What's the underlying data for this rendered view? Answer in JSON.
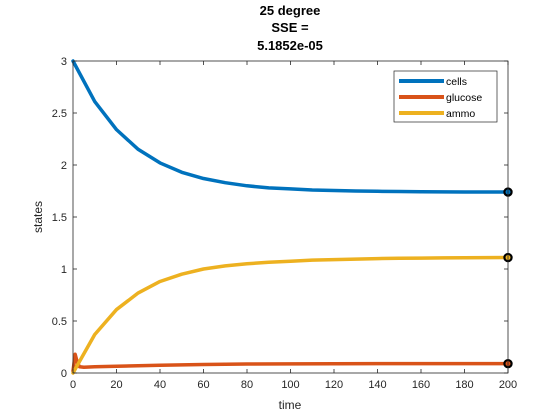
{
  "chart_data": {
    "type": "line",
    "title_lines": [
      "25 degree",
      "SSE =",
      "5.1852e-05"
    ],
    "xlabel": "time",
    "ylabel": "states",
    "xlim": [
      0,
      200
    ],
    "ylim": [
      0,
      3
    ],
    "xticks": [
      0,
      20,
      40,
      60,
      80,
      100,
      120,
      140,
      160,
      180,
      200
    ],
    "yticks": [
      0,
      0.5,
      1,
      1.5,
      2,
      2.5,
      3
    ],
    "xtick_labels": [
      "0",
      "20",
      "40",
      "60",
      "80",
      "100",
      "120",
      "140",
      "160",
      "180",
      "200"
    ],
    "ytick_labels": [
      "0",
      "0.5",
      "1",
      "1.5",
      "2",
      "2.5",
      "3"
    ],
    "grid": false,
    "legend_position": "top-right",
    "series": [
      {
        "name": "cells",
        "color": "#0072BD",
        "x": [
          0,
          10,
          20,
          30,
          40,
          50,
          60,
          70,
          80,
          90,
          100,
          110,
          120,
          130,
          140,
          150,
          160,
          170,
          180,
          190,
          200
        ],
        "y": [
          3.0,
          2.61,
          2.34,
          2.15,
          2.02,
          1.93,
          1.87,
          1.83,
          1.8,
          1.78,
          1.77,
          1.76,
          1.755,
          1.75,
          1.747,
          1.745,
          1.743,
          1.742,
          1.741,
          1.741,
          1.74
        ]
      },
      {
        "name": "glucose",
        "color": "#D95319",
        "x": [
          0,
          1,
          2,
          3,
          5,
          10,
          20,
          40,
          60,
          80,
          100,
          120,
          140,
          160,
          180,
          200
        ],
        "y": [
          0.02,
          0.18,
          0.1,
          0.06,
          0.055,
          0.06,
          0.065,
          0.075,
          0.082,
          0.086,
          0.088,
          0.089,
          0.09,
          0.09,
          0.09,
          0.09
        ]
      },
      {
        "name": "ammo",
        "color": "#EDB120",
        "x": [
          0,
          10,
          20,
          30,
          40,
          50,
          60,
          70,
          80,
          90,
          100,
          110,
          120,
          130,
          140,
          150,
          160,
          170,
          180,
          190,
          200
        ],
        "y": [
          0.0,
          0.37,
          0.61,
          0.77,
          0.88,
          0.95,
          1.0,
          1.03,
          1.05,
          1.065,
          1.075,
          1.085,
          1.09,
          1.095,
          1.1,
          1.103,
          1.105,
          1.107,
          1.108,
          1.109,
          1.11
        ]
      }
    ],
    "endpoint_markers": [
      {
        "series": "cells",
        "x": 200,
        "y": 1.74
      },
      {
        "series": "ammo",
        "x": 200,
        "y": 1.11
      },
      {
        "series": "glucose",
        "x": 200,
        "y": 0.09
      }
    ]
  }
}
